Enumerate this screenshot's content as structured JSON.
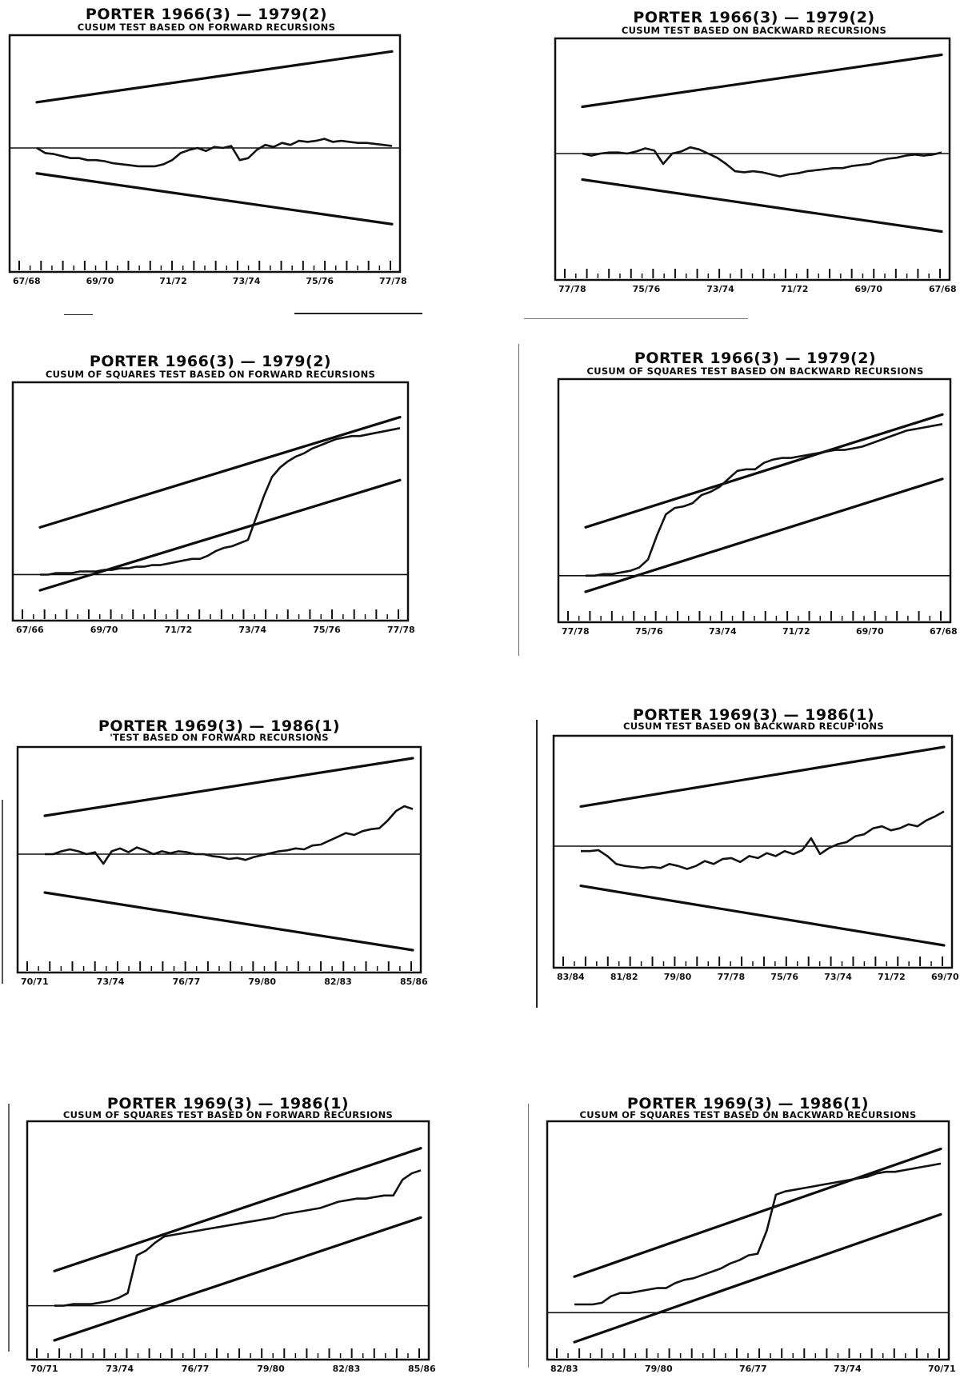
{
  "charts": [
    {
      "id": "p1",
      "title": "PORTER 1966(3) — 1979(2)",
      "subtitle": "CUSUM TEST BASED ON FORWARD RECURSIONS",
      "chart_data": {
        "type": "line",
        "test": "cusum",
        "direction": "forward",
        "tick_labels": [
          "67/68",
          "69/70",
          "71/72",
          "73/74",
          "75/76",
          "77/78"
        ],
        "ylim": [
          -1,
          1
        ],
        "upper_bound": [
          0.45,
          0.95
        ],
        "lower_bound": [
          -0.25,
          -0.75
        ],
        "series": [
          {
            "values": [
              0.0,
              -0.05,
              -0.06,
              -0.08,
              -0.1,
              -0.1,
              -0.12,
              -0.12,
              -0.13,
              -0.15,
              -0.16,
              -0.17,
              -0.18,
              -0.18,
              -0.18,
              -0.16,
              -0.12,
              -0.05,
              -0.02,
              0.0,
              -0.03,
              0.01,
              0.0,
              0.02,
              -0.12,
              -0.1,
              -0.02,
              0.03,
              0.01,
              0.05,
              0.03,
              0.07,
              0.06,
              0.07,
              0.09,
              0.06,
              0.07,
              0.06,
              0.05,
              0.05,
              0.04,
              0.03,
              0.02
            ]
          }
        ]
      }
    },
    {
      "id": "p2",
      "title": "PORTER 1966(3) — 1979(2)",
      "subtitle": "CUSUM TEST BASED ON BACKWARD RECURSIONS",
      "chart_data": {
        "type": "line",
        "test": "cusum",
        "direction": "backward",
        "tick_labels": [
          "77/78",
          "75/76",
          "73/74",
          "71/72",
          "69/70",
          "67/68"
        ],
        "ylim": [
          -1,
          1
        ],
        "upper_bound": [
          0.45,
          0.95
        ],
        "lower_bound": [
          -0.25,
          -0.75
        ],
        "series": [
          {
            "values": [
              0.0,
              -0.02,
              0.0,
              0.01,
              0.01,
              0.0,
              0.02,
              0.05,
              0.03,
              -0.1,
              0.0,
              0.02,
              0.06,
              0.04,
              0.0,
              -0.04,
              -0.1,
              -0.17,
              -0.18,
              -0.17,
              -0.18,
              -0.2,
              -0.22,
              -0.2,
              -0.19,
              -0.17,
              -0.16,
              -0.15,
              -0.14,
              -0.14,
              -0.12,
              -0.11,
              -0.1,
              -0.07,
              -0.05,
              -0.04,
              -0.02,
              -0.01,
              -0.02,
              -0.01,
              0.01
            ]
          }
        ]
      }
    },
    {
      "id": "p3",
      "title": "PORTER 1966(3) — 1979(2)",
      "subtitle": "CUSUM OF SQUARES TEST BASED ON FORWARD RECURSIONS",
      "chart_data": {
        "type": "line",
        "test": "cusum_of_squares",
        "direction": "forward",
        "tick_labels": [
          "67/66",
          "69/70",
          "71/72",
          "73/74",
          "75/76",
          "77/78"
        ],
        "ylim": [
          -0.15,
          1.15
        ],
        "upper_bound": [
          0.3,
          1.0
        ],
        "lower_bound": [
          -0.1,
          0.6
        ],
        "series": [
          {
            "values": [
              0.0,
              0.0,
              0.01,
              0.01,
              0.01,
              0.02,
              0.02,
              0.02,
              0.03,
              0.03,
              0.04,
              0.04,
              0.05,
              0.05,
              0.06,
              0.06,
              0.07,
              0.08,
              0.09,
              0.1,
              0.1,
              0.12,
              0.15,
              0.17,
              0.18,
              0.2,
              0.22,
              0.36,
              0.5,
              0.62,
              0.68,
              0.72,
              0.75,
              0.77,
              0.8,
              0.82,
              0.84,
              0.86,
              0.87,
              0.88,
              0.88,
              0.89,
              0.9,
              0.91,
              0.92,
              0.93
            ]
          }
        ]
      }
    },
    {
      "id": "p4",
      "title": "PORTER 1966(3) — 1979(2)",
      "subtitle": "CUSUM OF SQUARES TEST BASED ON BACKWARD RECURSIONS",
      "chart_data": {
        "type": "line",
        "test": "cusum_of_squares",
        "direction": "backward",
        "tick_labels": [
          "77/78",
          "75/76",
          "73/74",
          "71/72",
          "69/70",
          "67/68"
        ],
        "ylim": [
          -0.15,
          1.15
        ],
        "upper_bound": [
          0.3,
          1.0
        ],
        "lower_bound": [
          -0.1,
          0.6
        ],
        "series": [
          {
            "values": [
              0.0,
              0.0,
              0.01,
              0.01,
              0.02,
              0.03,
              0.05,
              0.1,
              0.25,
              0.38,
              0.42,
              0.43,
              0.45,
              0.5,
              0.52,
              0.55,
              0.6,
              0.65,
              0.66,
              0.66,
              0.7,
              0.72,
              0.73,
              0.73,
              0.74,
              0.75,
              0.76,
              0.77,
              0.78,
              0.78,
              0.79,
              0.8,
              0.82,
              0.84,
              0.86,
              0.88,
              0.9,
              0.91,
              0.92,
              0.93,
              0.94
            ]
          }
        ]
      }
    },
    {
      "id": "p5",
      "title": "PORTER 1969(3) — 1986(1)",
      "subtitle": "'TEST BASED ON FORWARD RECURSIONS",
      "chart_data": {
        "type": "line",
        "test": "cusum",
        "direction": "forward",
        "tick_labels": [
          "70/71",
          "73/74",
          "76/77",
          "79/80",
          "82/83",
          "85/86"
        ],
        "ylim": [
          -1,
          1
        ],
        "upper_bound": [
          0.4,
          1.0
        ],
        "lower_bound": [
          -0.4,
          -1.0
        ],
        "series": [
          {
            "values": [
              0.0,
              0.0,
              0.03,
              0.05,
              0.03,
              0.0,
              0.02,
              -0.1,
              0.03,
              0.06,
              0.02,
              0.07,
              0.04,
              0.0,
              0.03,
              0.01,
              0.03,
              0.02,
              0.0,
              0.0,
              -0.02,
              -0.03,
              -0.05,
              -0.04,
              -0.06,
              -0.03,
              -0.01,
              0.01,
              0.03,
              0.04,
              0.06,
              0.05,
              0.09,
              0.1,
              0.14,
              0.18,
              0.22,
              0.2,
              0.24,
              0.26,
              0.27,
              0.35,
              0.45,
              0.5,
              0.47
            ]
          }
        ]
      }
    },
    {
      "id": "p6",
      "title": "PORTER 1969(3) — 1986(1)",
      "subtitle": "CUSUM TEST BASED ON BACKWARD RECUP'IONS",
      "chart_data": {
        "type": "line",
        "test": "cusum",
        "direction": "backward",
        "tick_labels": [
          "83/84",
          "81/82",
          "79/80",
          "77/78",
          "75/76",
          "73/74",
          "71/72",
          "69/70"
        ],
        "ylim": [
          -1,
          1
        ],
        "upper_bound": [
          0.4,
          1.0
        ],
        "lower_bound": [
          -0.4,
          -1.0
        ],
        "series": [
          {
            "values": [
              -0.05,
              -0.05,
              -0.04,
              -0.1,
              -0.18,
              -0.2,
              -0.21,
              -0.22,
              -0.21,
              -0.22,
              -0.18,
              -0.2,
              -0.23,
              -0.2,
              -0.15,
              -0.18,
              -0.13,
              -0.12,
              -0.16,
              -0.1,
              -0.12,
              -0.07,
              -0.1,
              -0.05,
              -0.08,
              -0.04,
              0.08,
              -0.08,
              -0.02,
              0.02,
              0.04,
              0.1,
              0.12,
              0.18,
              0.2,
              0.16,
              0.18,
              0.22,
              0.2,
              0.26,
              0.3,
              0.35
            ]
          }
        ]
      }
    },
    {
      "id": "p7",
      "title": "PORTER 1969(3) — 1986(1)",
      "subtitle": "CUSUM OF SQUARES TEST BASED ON FORWARD RECURSIONS",
      "chart_data": {
        "type": "line",
        "test": "cusum_of_squares",
        "direction": "forward",
        "tick_labels": [
          "70/71",
          "73/74",
          "76/77",
          "79/80",
          "82/83",
          "85/86"
        ],
        "ylim": [
          -0.2,
          1.1
        ],
        "upper_bound": [
          0.22,
          1.0
        ],
        "lower_bound": [
          -0.22,
          0.56
        ],
        "series": [
          {
            "values": [
              0.0,
              0.0,
              0.01,
              0.01,
              0.01,
              0.02,
              0.03,
              0.05,
              0.08,
              0.32,
              0.35,
              0.4,
              0.44,
              0.45,
              0.46,
              0.47,
              0.48,
              0.49,
              0.5,
              0.51,
              0.52,
              0.53,
              0.54,
              0.55,
              0.56,
              0.58,
              0.59,
              0.6,
              0.61,
              0.62,
              0.64,
              0.66,
              0.67,
              0.68,
              0.68,
              0.69,
              0.7,
              0.7,
              0.8,
              0.84,
              0.86
            ]
          }
        ]
      }
    },
    {
      "id": "p8",
      "title": "PORTER 1969(3) — 1986(1)",
      "subtitle": "CUSUM OF SQUARES TEST BASED ON BACKWARD RECURSIONS",
      "chart_data": {
        "type": "line",
        "test": "cusum_of_squares",
        "direction": "backward",
        "tick_labels": [
          "82/83",
          "79/80",
          "76/77",
          "73/74",
          "70/71"
        ],
        "ylim": [
          -0.15,
          1.1
        ],
        "upper_bound": [
          0.22,
          1.0
        ],
        "lower_bound": [
          -0.18,
          0.6
        ],
        "series": [
          {
            "values": [
              0.05,
              0.05,
              0.05,
              0.06,
              0.1,
              0.12,
              0.12,
              0.13,
              0.14,
              0.15,
              0.15,
              0.18,
              0.2,
              0.21,
              0.23,
              0.25,
              0.27,
              0.3,
              0.32,
              0.35,
              0.36,
              0.5,
              0.72,
              0.74,
              0.75,
              0.76,
              0.77,
              0.78,
              0.79,
              0.8,
              0.81,
              0.82,
              0.83,
              0.85,
              0.86,
              0.86,
              0.87,
              0.88,
              0.89,
              0.9,
              0.91
            ]
          }
        ]
      }
    }
  ]
}
